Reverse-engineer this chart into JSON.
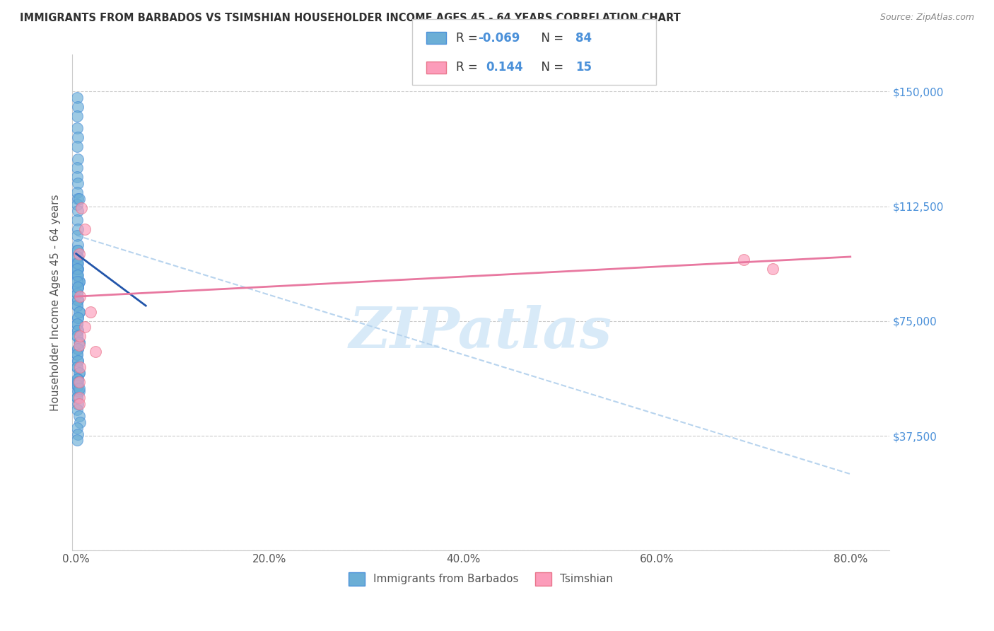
{
  "title": "IMMIGRANTS FROM BARBADOS VS TSIMSHIAN HOUSEHOLDER INCOME AGES 45 - 64 YEARS CORRELATION CHART",
  "source": "Source: ZipAtlas.com",
  "ylabel": "Householder Income Ages 45 - 64 years",
  "xlabel_ticks": [
    "0.0%",
    "20.0%",
    "40.0%",
    "60.0%",
    "80.0%"
  ],
  "xlabel_vals": [
    0.0,
    0.2,
    0.4,
    0.6,
    0.8
  ],
  "ylim": [
    0,
    162000
  ],
  "xlim": [
    -0.004,
    0.84
  ],
  "yticks": [
    0,
    37500,
    75000,
    112500,
    150000
  ],
  "ytick_labels_right": [
    "",
    "$37,500",
    "$75,000",
    "$112,500",
    "$150,000"
  ],
  "watermark": "ZIPatlas",
  "legend_label1": "Immigrants from Barbados",
  "legend_label2": "Tsimshian",
  "r1": "-0.069",
  "n1": "84",
  "r2": "0.144",
  "n2": "15",
  "scatter_blue_x": [
    0.001,
    0.002,
    0.001,
    0.001,
    0.002,
    0.001,
    0.002,
    0.001,
    0.001,
    0.002,
    0.001,
    0.002,
    0.001,
    0.002,
    0.001,
    0.002,
    0.001,
    0.002,
    0.003,
    0.001,
    0.002,
    0.001,
    0.002,
    0.001,
    0.003,
    0.002,
    0.001,
    0.002,
    0.001,
    0.003,
    0.002,
    0.001,
    0.002,
    0.001,
    0.003,
    0.002,
    0.001,
    0.002,
    0.001,
    0.003,
    0.002,
    0.001,
    0.002,
    0.001,
    0.003,
    0.002,
    0.001,
    0.002,
    0.001,
    0.003,
    0.002,
    0.001,
    0.002,
    0.001,
    0.003,
    0.002,
    0.001,
    0.002,
    0.001,
    0.003,
    0.002,
    0.001,
    0.002,
    0.001,
    0.002,
    0.001,
    0.002,
    0.001,
    0.002,
    0.001,
    0.002,
    0.001,
    0.002,
    0.003,
    0.001,
    0.002,
    0.001,
    0.003,
    0.004,
    0.001,
    0.002,
    0.001,
    0.002,
    0.003
  ],
  "scatter_blue_y": [
    148000,
    145000,
    142000,
    138000,
    135000,
    132000,
    128000,
    125000,
    122000,
    120000,
    117000,
    115000,
    113000,
    111000,
    108000,
    105000,
    103000,
    100000,
    115000,
    98000,
    96000,
    94000,
    92000,
    90000,
    88000,
    86000,
    84000,
    82000,
    80000,
    78000,
    76000,
    74000,
    72000,
    70000,
    68000,
    66000,
    64000,
    62000,
    60000,
    58000,
    56000,
    94000,
    92000,
    90000,
    88000,
    86000,
    84000,
    82000,
    80000,
    78000,
    76000,
    74000,
    72000,
    70000,
    68000,
    66000,
    64000,
    62000,
    60000,
    58000,
    56000,
    54000,
    52000,
    50000,
    98000,
    96000,
    94000,
    92000,
    90000,
    88000,
    86000,
    56000,
    54000,
    52000,
    50000,
    48000,
    46000,
    44000,
    42000,
    40000,
    38000,
    36000,
    55000,
    53000
  ],
  "scatter_pink_x": [
    0.005,
    0.009,
    0.003,
    0.004,
    0.003,
    0.015,
    0.003,
    0.004,
    0.003,
    0.009,
    0.003,
    0.004,
    0.02,
    0.69,
    0.72
  ],
  "scatter_pink_y": [
    112000,
    105000,
    97000,
    83000,
    67000,
    78000,
    55000,
    60000,
    50000,
    73000,
    48000,
    70000,
    65000,
    95000,
    92000
  ],
  "blue_line_x": [
    0.0,
    0.072
  ],
  "blue_line_y": [
    97000,
    80000
  ],
  "pink_line_x": [
    0.0,
    0.8
  ],
  "pink_line_y": [
    83000,
    96000
  ],
  "dashed_line_x": [
    0.0,
    0.8
  ],
  "dashed_line_y": [
    103000,
    25000
  ],
  "blue_color": "#6baed6",
  "blue_edge_color": "#4a90d9",
  "pink_color": "#fc9cba",
  "pink_edge_color": "#e8748a",
  "blue_line_color": "#2255aa",
  "pink_line_color": "#e878a0",
  "dashed_line_color": "#b8d4ee",
  "grid_color": "#cccccc",
  "title_color": "#303030",
  "source_color": "#888888",
  "right_tick_color": "#4a90d9",
  "watermark_color": "#d8eaf8"
}
